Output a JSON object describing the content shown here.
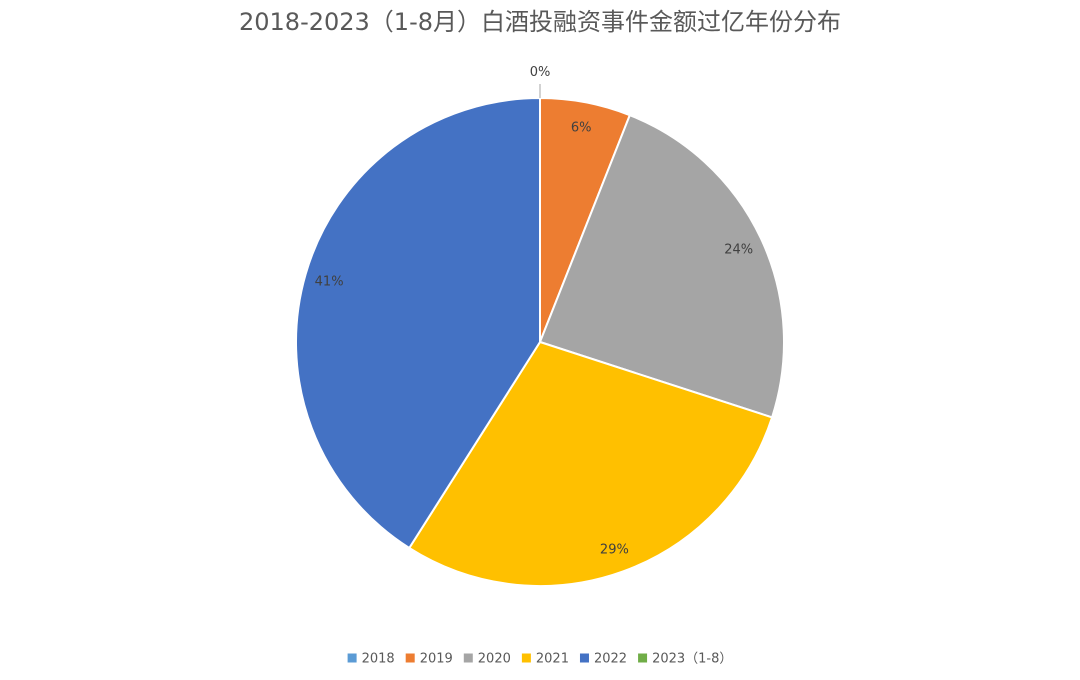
{
  "chart_data": {
    "type": "pie",
    "title": "2018-2023（1-8月）白酒投融资事件金额过亿年份分布",
    "categories": [
      "2018",
      "2019",
      "2020",
      "2021",
      "2022",
      "2023（1-8）"
    ],
    "values": [
      0,
      6,
      24,
      29,
      41,
      0
    ],
    "data_labels": [
      "0%",
      "6%",
      "24%",
      "29%",
      "41%",
      ""
    ],
    "colors": [
      "#5B9BD5",
      "#ED7D31",
      "#A5A5A5",
      "#FFC000",
      "#4472C4",
      "#70AD47"
    ],
    "unit": "%",
    "legend_position": "bottom"
  }
}
